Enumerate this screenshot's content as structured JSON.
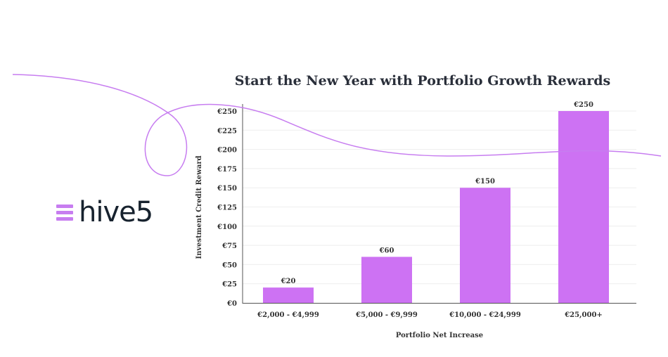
{
  "brand": {
    "name": "hive5",
    "color": "#c77df0"
  },
  "chart_data": {
    "type": "bar",
    "title": "Start the New Year with Portfolio Growth Rewards",
    "xlabel": "Portfolio Net Increase",
    "ylabel": "Investment Credit Reward",
    "categories": [
      "€2,000 - €4,999",
      "€5,000 - €9,999",
      "€10,000 - €24,999",
      "€25,000+"
    ],
    "values": [
      20,
      60,
      150,
      250
    ],
    "data_labels": [
      "€20",
      "€60",
      "€150",
      "€250"
    ],
    "yticks": [
      0,
      25,
      50,
      75,
      100,
      125,
      150,
      175,
      200,
      225,
      250
    ],
    "ytick_labels": [
      "€0",
      "€25",
      "€50",
      "€75",
      "€100",
      "€125",
      "€150",
      "€175",
      "€200",
      "€225",
      "€250"
    ],
    "ylim": [
      0,
      250
    ],
    "grid": true,
    "bar_color": "#cd72f3"
  }
}
